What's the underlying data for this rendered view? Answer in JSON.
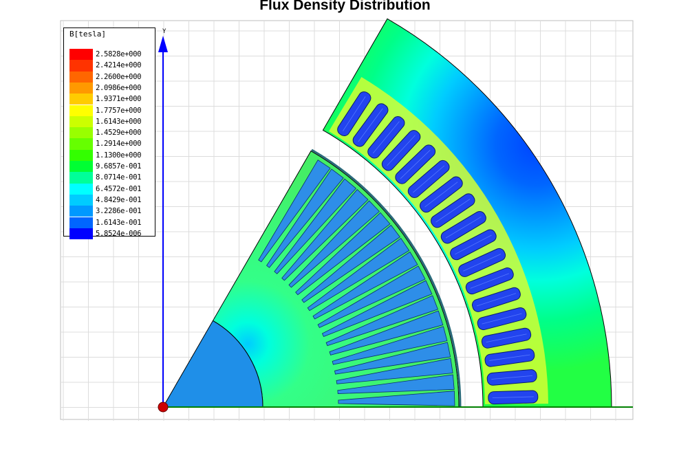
{
  "title": "Flux Density Distribution",
  "legend": {
    "title": "B[tesla]",
    "entries": [
      {
        "label": "2.5828e+000",
        "color": "#ff0000"
      },
      {
        "label": "2.4214e+000",
        "color": "#ff3300"
      },
      {
        "label": "2.2600e+000",
        "color": "#ff6600"
      },
      {
        "label": "2.0986e+000",
        "color": "#ff9900"
      },
      {
        "label": "1.9371e+000",
        "color": "#ffcc00"
      },
      {
        "label": "1.7757e+000",
        "color": "#ffff00"
      },
      {
        "label": "1.6143e+000",
        "color": "#ccff00"
      },
      {
        "label": "1.4529e+000",
        "color": "#99ff00"
      },
      {
        "label": "1.2914e+000",
        "color": "#66ff00"
      },
      {
        "label": "1.1300e+000",
        "color": "#33ff00"
      },
      {
        "label": "9.6857e-001",
        "color": "#00ff33"
      },
      {
        "label": "8.0714e-001",
        "color": "#00ff99"
      },
      {
        "label": "6.4572e-001",
        "color": "#00ffff"
      },
      {
        "label": "4.8429e-001",
        "color": "#00ccff"
      },
      {
        "label": "3.2286e-001",
        "color": "#0099ff"
      },
      {
        "label": "1.6143e-001",
        "color": "#0066ff"
      },
      {
        "label": "5.8524e-006",
        "color": "#0000ff"
      }
    ]
  },
  "axes": {
    "y_label": "Y"
  },
  "colors": {
    "grid": "#dcdcdc",
    "y_axis": "#0000ff",
    "x_axis": "#008000",
    "origin": "#cc0000",
    "outline": "#000000",
    "rotor_core": "#3cf07a",
    "stator_yoke": "#22ff44",
    "shaft": "#1f8fe8",
    "rotor_bar": "#2e8ee8",
    "stator_slot": "#2244ee",
    "stator_tooth": "#d4ff33"
  },
  "geometry_description": {
    "rotor_bars": 18,
    "stator_slots": 18
  }
}
